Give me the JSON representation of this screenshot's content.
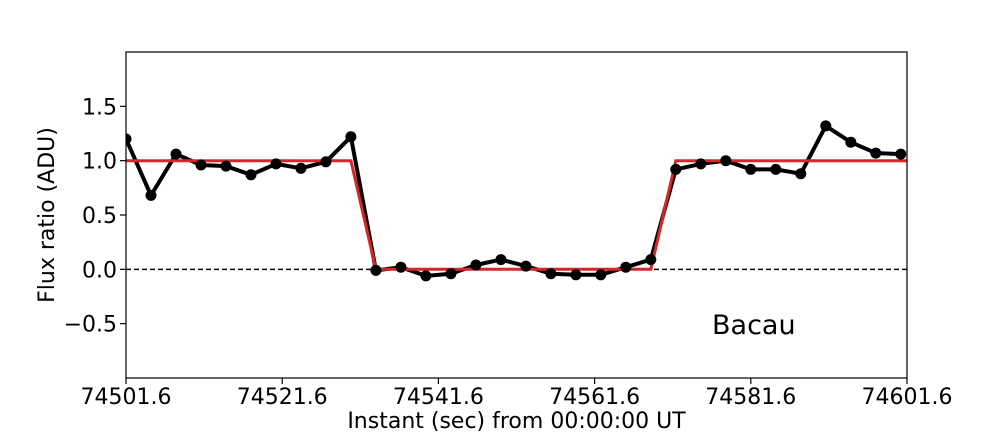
{
  "chart_data": {
    "type": "line",
    "title": "",
    "xlabel": "Instant (sec) from 00:00:00 UT",
    "ylabel": "Flux ratio (ADU)",
    "xlim": [
      74501.6,
      74601.6
    ],
    "ylim": [
      -1.0,
      2.0
    ],
    "x_ticks": [
      74501.6,
      74521.6,
      74541.6,
      74561.6,
      74581.6,
      74601.6
    ],
    "x_tick_labels": [
      "74501.6",
      "74521.6",
      "74541.6",
      "74561.6",
      "74581.6",
      "74601.6"
    ],
    "y_ticks": [
      -0.5,
      0.0,
      0.5,
      1.0,
      1.5
    ],
    "y_tick_labels": [
      "−0.5",
      "0.0",
      "0.5",
      "1.0",
      "1.5"
    ],
    "grid": false,
    "annotation": "Bacau",
    "series": [
      {
        "style": "black line with circle markers",
        "color": "#000000",
        "x": [
          74501.6,
          74504.8,
          74508.0,
          74511.2,
          74514.4,
          74517.6,
          74520.8,
          74524.0,
          74527.2,
          74530.4,
          74533.6,
          74536.8,
          74540.0,
          74543.2,
          74546.4,
          74549.6,
          74552.8,
          74556.0,
          74559.2,
          74562.4,
          74565.6,
          74568.8,
          74572.0,
          74575.2,
          74578.4,
          74581.6,
          74584.8,
          74588.0,
          74591.2,
          74594.4,
          74597.6,
          74600.8
        ],
        "y": [
          1.2,
          0.68,
          1.06,
          0.96,
          0.95,
          0.87,
          0.97,
          0.93,
          0.99,
          1.22,
          -0.01,
          0.02,
          -0.06,
          -0.04,
          0.04,
          0.09,
          0.03,
          -0.04,
          -0.05,
          -0.05,
          0.02,
          0.09,
          0.92,
          0.97,
          1.0,
          0.92,
          0.92,
          0.88,
          1.32,
          1.17,
          1.07,
          1.06
        ]
      },
      {
        "style": "red square-well model",
        "color": "#d62728",
        "x": [
          74501.6,
          74530.4,
          74533.6,
          74568.8,
          74572.0,
          74601.6
        ],
        "y": [
          1.0,
          1.0,
          0.0,
          0.0,
          1.0,
          1.0
        ]
      }
    ],
    "reference_line": {
      "y": 0.0,
      "style": "dashed",
      "color": "#000000"
    }
  }
}
